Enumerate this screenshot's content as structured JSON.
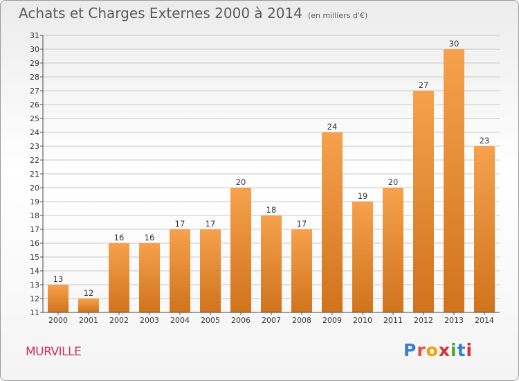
{
  "header": {
    "title": "Achats et Charges Externes 2000 à 2014",
    "subtitle": "(en milliers d'€)"
  },
  "footer": {
    "commune": "MURVILLE",
    "logo_letters": [
      "P",
      "r",
      "o",
      "x",
      "i",
      "t",
      "i"
    ],
    "logo_colors": [
      "#3a7fd0",
      "#e84d3d",
      "#f2a200",
      "#d8312e",
      "#4aa832",
      "#2e7fd6",
      "#d8312e"
    ]
  },
  "colors": {
    "bar_top": "#f6a14d",
    "bar_bottom": "#d0731d",
    "grid": "#c8c8c8"
  },
  "chart_data": {
    "type": "bar",
    "title": "Achats et Charges Externes 2000 à 2014",
    "subtitle": "(en milliers d'€)",
    "categories": [
      "2000",
      "2001",
      "2002",
      "2003",
      "2004",
      "2005",
      "2006",
      "2007",
      "2008",
      "2009",
      "2010",
      "2011",
      "2012",
      "2013",
      "2014"
    ],
    "values": [
      13,
      12,
      16,
      16,
      17,
      17,
      20,
      18,
      17,
      24,
      19,
      20,
      27,
      30,
      23
    ],
    "ylim": [
      11,
      31
    ],
    "yticks": [
      11,
      12,
      13,
      14,
      15,
      16,
      17,
      18,
      19,
      20,
      21,
      22,
      23,
      24,
      25,
      26,
      27,
      28,
      29,
      30,
      31
    ],
    "grid": true,
    "data_labels": true
  }
}
